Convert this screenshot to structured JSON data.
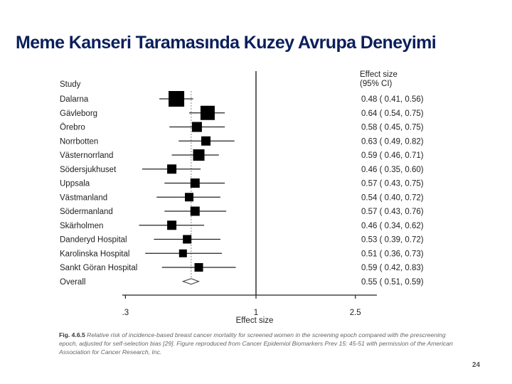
{
  "slide": {
    "title": "Meme Kanseri Taramasında Kuzey Avrupa Deneyimi",
    "caption_label": "Fig. 4.6.5",
    "caption_text": "Relative risk of incidence-based breast cancer mortality for screened women in the screening epoch compared with the prescreening epoch, adjusted for self-selection bias [29]. Figure reproduced from Cancer Epidemiol Biomarkers Prev 15: 45-51 with permission of the American Association for Cancer Research, Inc.",
    "page_number": "24"
  },
  "chart_data": {
    "type": "forest",
    "column_header_study": "Study",
    "column_header_effect": [
      "Effect size",
      "(95% CI)"
    ],
    "xlabel": "Effect size",
    "x_scale": "log",
    "x_ticks": [
      0.3,
      1,
      2.5
    ],
    "x_tick_labels": [
      ".3",
      "1",
      "2.5"
    ],
    "reference_line": 1,
    "studies": [
      {
        "name": "Dalarna",
        "es": 0.48,
        "lo": 0.41,
        "hi": 0.56,
        "label": "0.48 ( 0.41, 0.56)"
      },
      {
        "name": "Gävleborg",
        "es": 0.64,
        "lo": 0.54,
        "hi": 0.75,
        "label": "0.64 ( 0.54, 0.75)"
      },
      {
        "name": "Örebro",
        "es": 0.58,
        "lo": 0.45,
        "hi": 0.75,
        "label": "0.58 ( 0.45, 0.75)"
      },
      {
        "name": "Norrbotten",
        "es": 0.63,
        "lo": 0.49,
        "hi": 0.82,
        "label": "0.63 ( 0.49, 0.82)"
      },
      {
        "name": "Västernorrland",
        "es": 0.59,
        "lo": 0.46,
        "hi": 0.71,
        "label": "0.59 ( 0.46, 0.71)"
      },
      {
        "name": "Södersjukhuset",
        "es": 0.46,
        "lo": 0.35,
        "hi": 0.6,
        "label": "0.46 ( 0.35, 0.60)"
      },
      {
        "name": "Uppsala",
        "es": 0.57,
        "lo": 0.43,
        "hi": 0.75,
        "label": "0.57 ( 0.43, 0.75)"
      },
      {
        "name": "Västmanland",
        "es": 0.54,
        "lo": 0.4,
        "hi": 0.72,
        "label": "0.54 ( 0.40, 0.72)"
      },
      {
        "name": "Södermanland",
        "es": 0.57,
        "lo": 0.43,
        "hi": 0.76,
        "label": "0.57 ( 0.43, 0.76)"
      },
      {
        "name": "Skärholmen",
        "es": 0.46,
        "lo": 0.34,
        "hi": 0.62,
        "label": "0.46 ( 0.34, 0.62)"
      },
      {
        "name": "Danderyd Hospital",
        "es": 0.53,
        "lo": 0.39,
        "hi": 0.72,
        "label": "0.53 ( 0.39, 0.72)"
      },
      {
        "name": "Karolinska Hospital",
        "es": 0.51,
        "lo": 0.36,
        "hi": 0.73,
        "label": "0.51 ( 0.36, 0.73)"
      },
      {
        "name": "Sankt Göran Hospital",
        "es": 0.59,
        "lo": 0.42,
        "hi": 0.83,
        "label": "0.59 ( 0.42, 0.83)"
      }
    ],
    "overall": {
      "name": "Overall",
      "es": 0.55,
      "lo": 0.51,
      "hi": 0.59,
      "label": "0.55 ( 0.51, 0.59)"
    }
  }
}
